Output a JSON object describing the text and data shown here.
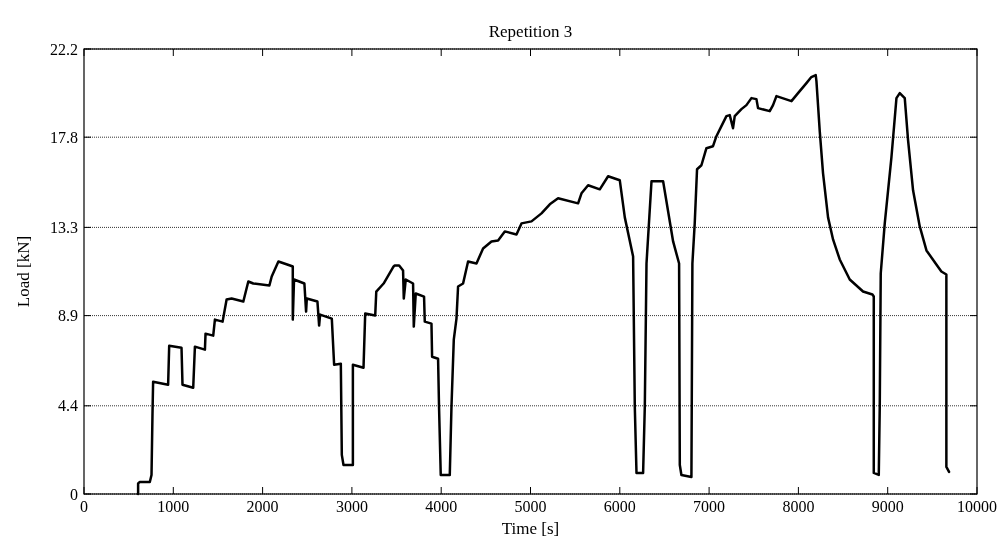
{
  "chart_data": {
    "type": "line",
    "title": "Repetition 3",
    "xlabel": "Time [s]",
    "ylabel": "Load [kN]",
    "xlim": [
      0,
      10000
    ],
    "xticks": [
      0,
      1000,
      2000,
      3000,
      4000,
      5000,
      6000,
      7000,
      8000,
      9000,
      10000
    ],
    "ylim": [
      0,
      22.2
    ],
    "yticks": [
      0,
      4.4,
      8.9,
      13.3,
      17.8,
      22.2
    ],
    "grid": "y",
    "marker": "none",
    "line_style": "solid",
    "series": [
      {
        "color": "#000000",
        "x": [
          606,
          606,
          625,
          737,
          756,
          767,
          774,
          942,
          954,
          1092,
          1103,
          1223,
          1242,
          1354,
          1361,
          1447,
          1466,
          1552,
          1597,
          1653,
          1784,
          1840,
          1896,
          2076,
          2102,
          2177,
          2308,
          2338,
          2338,
          2352,
          2468,
          2487,
          2495,
          2614,
          2633,
          2644,
          2775,
          2801,
          2876,
          2887,
          2906,
          3011,
          3011,
          3130,
          3149,
          3261,
          3273,
          3355,
          3467,
          3480,
          3529,
          3573,
          3581,
          3603,
          3685,
          3693,
          3715,
          3808,
          3816,
          3891,
          3898,
          3965,
          3976,
          3995,
          4096,
          4115,
          4141,
          4171,
          4189,
          4245,
          4301,
          4395,
          4469,
          4563,
          4637,
          4712,
          4843,
          4899,
          5011,
          5123,
          5216,
          5309,
          5533,
          5571,
          5645,
          5776,
          5869,
          6000,
          6056,
          6149,
          6168,
          6187,
          6261,
          6280,
          6299,
          6355,
          6485,
          6597,
          6664,
          6672,
          6690,
          6802,
          6813,
          6839,
          6865,
          6914,
          6970,
          7044,
          7082,
          7138,
          7194,
          7231,
          7268,
          7287,
          7362,
          7418,
          7474,
          7530,
          7548,
          7679,
          7716,
          7754,
          7922,
          7996,
          8090,
          8145,
          8194,
          8202,
          8239,
          8276,
          8332,
          8388,
          8463,
          8575,
          8724,
          8829,
          8844,
          8844,
          8900,
          8911,
          8922,
          8967,
          9042,
          9098,
          9135,
          9191,
          9228,
          9284,
          9359,
          9434,
          9545,
          9601,
          9657,
          9657,
          9687
        ],
        "values": [
          0,
          0.53,
          0.6,
          0.6,
          0.95,
          4.0,
          5.6,
          5.45,
          7.4,
          7.3,
          5.45,
          5.3,
          7.35,
          7.2,
          8.0,
          7.9,
          8.7,
          8.6,
          9.7,
          9.75,
          9.6,
          10.6,
          10.5,
          10.4,
          10.85,
          11.6,
          11.4,
          11.35,
          8.7,
          10.7,
          10.5,
          9.1,
          9.75,
          9.6,
          8.4,
          8.95,
          8.75,
          6.45,
          6.5,
          1.95,
          1.45,
          1.45,
          6.45,
          6.3,
          9.0,
          8.9,
          10.1,
          10.5,
          11.35,
          11.4,
          11.4,
          11.15,
          9.75,
          10.7,
          10.5,
          8.35,
          10.0,
          9.85,
          8.6,
          8.5,
          6.85,
          6.75,
          4.3,
          0.95,
          0.95,
          4.35,
          7.7,
          8.75,
          10.35,
          10.5,
          11.6,
          11.5,
          12.25,
          12.6,
          12.65,
          13.1,
          12.95,
          13.5,
          13.6,
          14.0,
          14.45,
          14.75,
          14.5,
          15.0,
          15.4,
          15.2,
          15.85,
          15.65,
          13.8,
          11.85,
          4.35,
          1.05,
          1.05,
          4.35,
          11.5,
          15.6,
          15.6,
          12.6,
          11.5,
          1.45,
          0.95,
          0.85,
          11.5,
          13.5,
          16.2,
          16.4,
          17.25,
          17.35,
          17.85,
          18.35,
          18.85,
          18.9,
          18.25,
          18.85,
          19.2,
          19.4,
          19.75,
          19.7,
          19.25,
          19.1,
          19.4,
          19.85,
          19.6,
          20.0,
          20.5,
          20.8,
          20.9,
          20.6,
          18.1,
          16.0,
          13.8,
          12.7,
          11.7,
          10.7,
          10.1,
          9.95,
          9.85,
          1.05,
          0.95,
          4.35,
          11.0,
          13.5,
          16.8,
          19.75,
          20.0,
          19.75,
          17.65,
          15.15,
          13.35,
          12.15,
          11.45,
          11.1,
          10.95,
          1.35,
          1.1
        ]
      }
    ]
  }
}
